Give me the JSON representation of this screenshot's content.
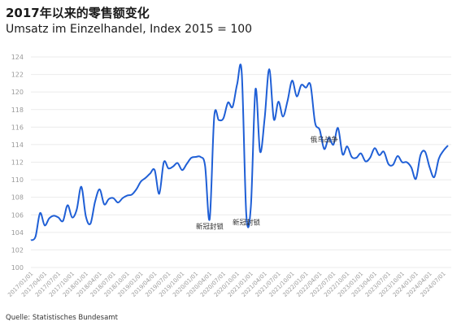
{
  "chart_data": {
    "type": "line",
    "title": "2017年以来的零售额变化",
    "subtitle": "Umsatz im Einzelhandel, Index 2015 = 100",
    "source": "Quelle: Statistisches Bundesamt",
    "xlabel": "",
    "ylabel": "",
    "ylim": [
      100,
      124
    ],
    "yticks": [
      100,
      102,
      104,
      106,
      108,
      110,
      112,
      114,
      116,
      118,
      120,
      122,
      124
    ],
    "grid": "horizontal",
    "line_color": "#1f5fd6",
    "x_tick_labels": [
      "2017/01/01",
      "2017/04/01",
      "2017/07/01",
      "2017/10/01",
      "2018/01/01",
      "2018/04/01",
      "2018/07/01",
      "2018/10/01",
      "2019/01/01",
      "2019/04/01",
      "2019/07/01",
      "2019/10/01",
      "2020/01/01",
      "2020/04/01",
      "2020/07/01",
      "2020/10/01",
      "2021/01/01",
      "2021/04/01",
      "2021/07/01",
      "2021/10/01",
      "2022/01/01",
      "2022/04/01",
      "2022/07/01",
      "2022/10/01",
      "2023/01/01",
      "2023/04/01",
      "2023/07/01",
      "2023/10/01",
      "2024/01/01",
      "2024/04/01",
      "2024/07/01"
    ],
    "series": [
      {
        "x": [
          "2017/01",
          "2017/02",
          "2017/03",
          "2017/04",
          "2017/05",
          "2017/06",
          "2017/07",
          "2017/08",
          "2017/09",
          "2017/10",
          "2017/11",
          "2017/12",
          "2018/01",
          "2018/02",
          "2018/03",
          "2018/04",
          "2018/05",
          "2018/06",
          "2018/07",
          "2018/08",
          "2018/09",
          "2018/10",
          "2018/11",
          "2018/12",
          "2019/01",
          "2019/02",
          "2019/03",
          "2019/04",
          "2019/05",
          "2019/06",
          "2019/07",
          "2019/08",
          "2019/09",
          "2019/10",
          "2019/11",
          "2019/12",
          "2020/01",
          "2020/02",
          "2020/03",
          "2020/04",
          "2020/05",
          "2020/06",
          "2020/07",
          "2020/08",
          "2020/09",
          "2020/10",
          "2020/11",
          "2020/12",
          "2021/01",
          "2021/02",
          "2021/03",
          "2021/04",
          "2021/05",
          "2021/06",
          "2021/07",
          "2021/08",
          "2021/09",
          "2021/10",
          "2021/11",
          "2021/12",
          "2022/01",
          "2022/02",
          "2022/03",
          "2022/04",
          "2022/05",
          "2022/06",
          "2022/07",
          "2022/08",
          "2022/09",
          "2022/10",
          "2022/11",
          "2022/12",
          "2023/01",
          "2023/02",
          "2023/03",
          "2023/04",
          "2023/05",
          "2023/06",
          "2023/07",
          "2023/08",
          "2023/09",
          "2023/10",
          "2023/11",
          "2023/12",
          "2024/01",
          "2024/02",
          "2024/03",
          "2024/04",
          "2024/05",
          "2024/06",
          "2024/07",
          "2024/08"
        ],
        "values": [
          103.1,
          103.5,
          106.2,
          104.8,
          105.6,
          105.9,
          105.7,
          105.3,
          107.1,
          105.7,
          106.6,
          109.2,
          105.8,
          105.0,
          107.5,
          108.9,
          107.2,
          107.8,
          107.9,
          107.4,
          107.9,
          108.2,
          108.3,
          108.9,
          109.8,
          110.2,
          110.7,
          111.1,
          108.4,
          112.0,
          111.3,
          111.5,
          111.9,
          111.1,
          111.8,
          112.5,
          112.6,
          112.6,
          111.6,
          105.5,
          117.2,
          116.8,
          117.0,
          118.8,
          118.3,
          120.9,
          122.2,
          106.0,
          107.0,
          120.3,
          113.2,
          117.0,
          122.6,
          116.9,
          118.9,
          117.2,
          119.0,
          121.3,
          119.5,
          120.8,
          120.5,
          120.8,
          116.5,
          115.7,
          113.5,
          114.8,
          114.0,
          115.9,
          112.9,
          113.8,
          112.6,
          112.5,
          113.0,
          112.1,
          112.5,
          113.6,
          112.8,
          113.2,
          111.8,
          111.7,
          112.7,
          112.0,
          112.0,
          111.4,
          110.1,
          112.8,
          113.2,
          111.4,
          110.3,
          112.4,
          113.3,
          113.9
        ]
      }
    ],
    "annotations": [
      {
        "text": "新冠封锁",
        "x": "2020/04",
        "y": 105.5
      },
      {
        "text": "新冠封锁",
        "x": "2020/12",
        "y": 106.0
      },
      {
        "text": "俄乌战争",
        "x": "2022/05",
        "y": 113.5
      }
    ]
  }
}
